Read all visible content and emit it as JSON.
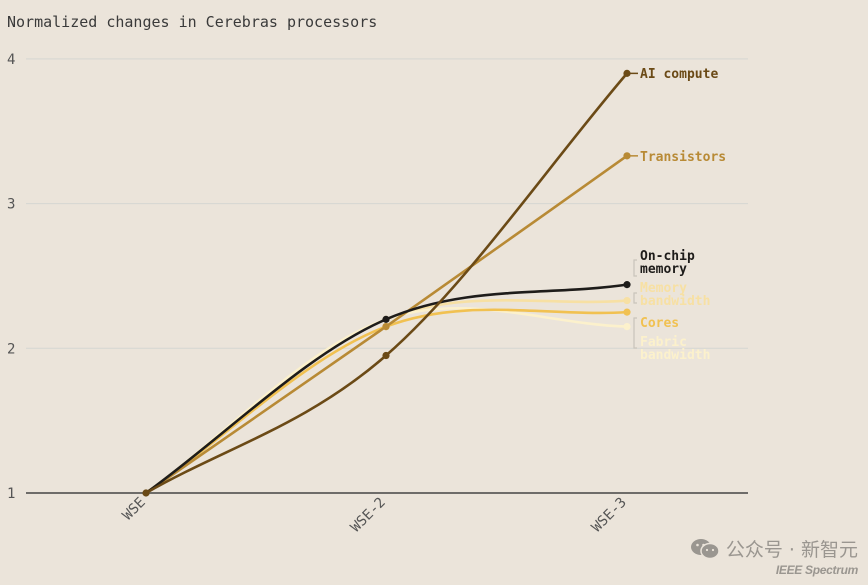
{
  "chart_data": {
    "type": "line",
    "title": "Normalized changes in Cerebras processors",
    "categories": [
      "WSE",
      "WSE-2",
      "WSE-3"
    ],
    "ylim": [
      1,
      4
    ],
    "yticks": [
      "1",
      "2",
      "3",
      "4"
    ],
    "grid": true,
    "series": [
      {
        "name": "AI compute",
        "values": [
          1,
          1.95,
          3.9
        ],
        "color": "#6b4a16"
      },
      {
        "name": "Transistors",
        "values": [
          1,
          2.15,
          3.33
        ],
        "color": "#b88a35"
      },
      {
        "name": "On-chip memory",
        "values": [
          1,
          2.2,
          2.44
        ],
        "color": "#1e1c1a"
      },
      {
        "name": "Memory bandwidth",
        "values": [
          1,
          2.2,
          2.33
        ],
        "color": "#f7e0a3"
      },
      {
        "name": "Cores",
        "values": [
          1,
          2.15,
          2.25
        ],
        "color": "#f1c151"
      },
      {
        "name": "Fabric bandwidth",
        "values": [
          1,
          2.2,
          2.15
        ],
        "color": "#fcf1cc"
      }
    ]
  },
  "watermark": {
    "wechat_text": "公众号 · 新智元",
    "source": "IEEE Spectrum",
    "icon": "wechat-icon"
  }
}
